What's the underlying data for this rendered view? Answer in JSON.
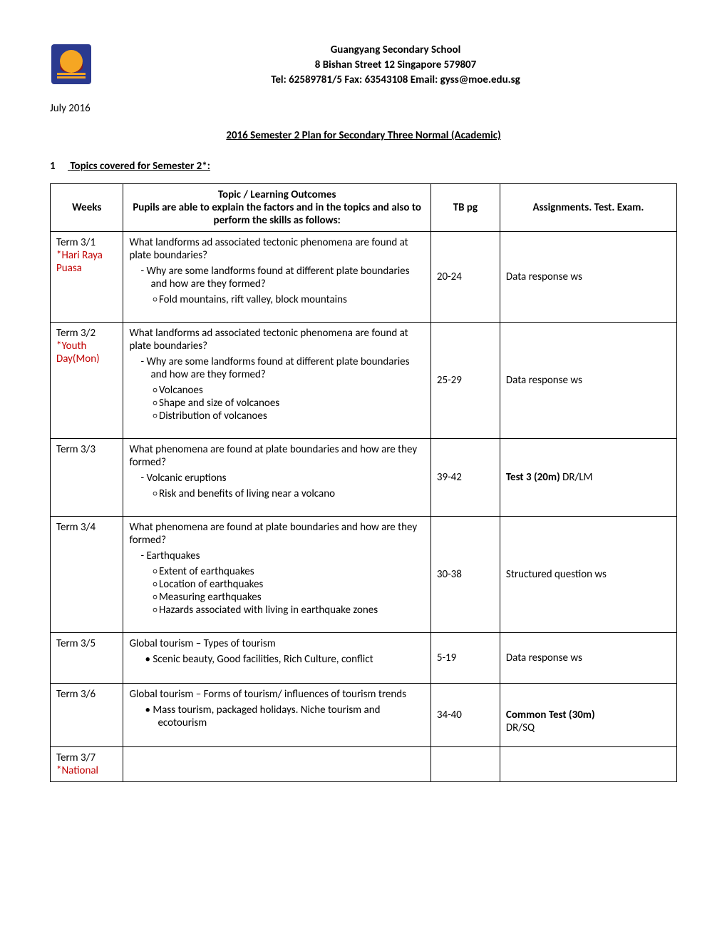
{
  "header": {
    "school_name": "Guangyang Secondary School",
    "address": "8 Bishan Street 12 Singapore 579807",
    "contact": "Tel: 62589781/5 Fax: 63543108  Email: gyss@moe.edu.sg",
    "logo_colors": {
      "outer": "#2b3a8f",
      "inner": "#f5a623",
      "bottom": "#8b1a1a"
    }
  },
  "date": "July 2016",
  "doc_title": "2016 Semester 2  Plan for Secondary Three Normal (Academic)",
  "section1": {
    "num": "1",
    "heading": "Topics covered for Semester 2*:"
  },
  "table": {
    "head": {
      "weeks": "Weeks",
      "topic_l1": "Topic / Learning Outcomes",
      "topic_l2": "Pupils are able to explain the factors and in the topics and also to perform the skills as follows:",
      "tb": "TB pg",
      "assign": "Assignments. Test. Exam."
    },
    "rows": [
      {
        "week": "Term 3/1",
        "holiday": "*Hari Raya Puasa",
        "topic_intro": "What landforms ad associated tectonic phenomena are found at plate boundaries?",
        "dash": [
          "Why are some landforms found at different plate boundaries and how are they formed?"
        ],
        "circ": [
          "Fold mountains, rift valley, block mountains"
        ],
        "tb": "20-24",
        "assign_plain": "Data response ws"
      },
      {
        "week": "Term 3/2",
        "holiday": "*Youth Day(Mon)",
        "topic_intro": "What landforms ad associated tectonic phenomena are found at plate boundaries?",
        "dash": [
          "Why are some landforms found at different plate boundaries and how are they formed?"
        ],
        "circ": [
          "Volcanoes",
          "Shape and size of volcanoes",
          "Distribution of volcanoes"
        ],
        "tb": "25-29",
        "assign_plain": "Data response ws"
      },
      {
        "week": "Term 3/3",
        "topic_intro": "What phenomena are found at plate boundaries and how are they formed?",
        "dash": [
          "Volcanic eruptions"
        ],
        "circ": [
          "Risk and benefits of living near a volcano"
        ],
        "tb": "39-42",
        "assign_bold": "Test 3 (20m) ",
        "assign_tail": "DR/LM"
      },
      {
        "week": "Term 3/4",
        "topic_intro": "What phenomena are found at plate boundaries and how are they formed?",
        "dash": [
          "Earthquakes"
        ],
        "circ": [
          "Extent of earthquakes",
          "Location of earthquakes",
          "Measuring earthquakes",
          "Hazards associated with living in earthquake zones"
        ],
        "tb": "30-38",
        "assign_plain": "Structured question ws"
      },
      {
        "week": "Term 3/5",
        "topic_intro": "Global tourism – Types of tourism",
        "bullet": [
          "Scenic beauty, Good facilities, Rich Culture, conflict"
        ],
        "tb": "5-19",
        "assign_plain": "Data response ws"
      },
      {
        "week": "Term 3/6",
        "topic_intro": "Global tourism – Forms of tourism/ influences of tourism trends",
        "bullet": [
          "Mass tourism, packaged holidays. Niche tourism and ecotourism"
        ],
        "tb": "34-40",
        "assign_bold_block": "Common Test (30m)",
        "assign_block2": "DR/SQ"
      },
      {
        "week": "Term 3/7",
        "holiday": "*National"
      }
    ]
  }
}
